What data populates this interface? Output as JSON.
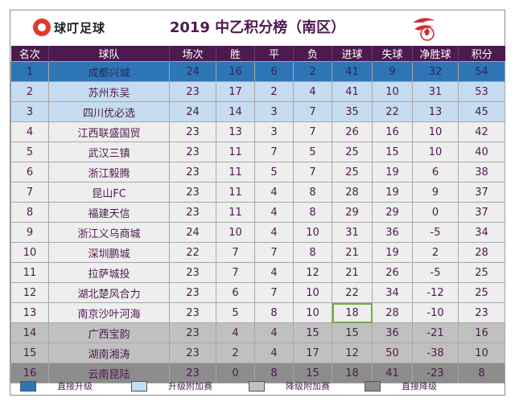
{
  "header": {
    "logo_text": "球叮足球",
    "title": "2019 中乙积分榜（南区）",
    "left_logo_icon": "football-app-logo-icon",
    "right_logo_icon": "league-emblem-icon"
  },
  "table": {
    "columns": [
      "名次",
      "球队",
      "场次",
      "胜",
      "平",
      "负",
      "进球",
      "失球",
      "净胜球",
      "积分"
    ],
    "rows": [
      {
        "rank": "1",
        "team": "成都兴城",
        "played": "24",
        "won": "16",
        "drawn": "6",
        "lost": "2",
        "gf": "41",
        "ga": "9",
        "gd": "32",
        "pts": "54",
        "zone": "direct"
      },
      {
        "rank": "2",
        "team": "苏州东吴",
        "played": "23",
        "won": "17",
        "drawn": "2",
        "lost": "4",
        "gf": "41",
        "ga": "10",
        "gd": "31",
        "pts": "53",
        "zone": "playoff"
      },
      {
        "rank": "3",
        "team": "四川优必选",
        "played": "24",
        "won": "14",
        "drawn": "3",
        "lost": "7",
        "gf": "35",
        "ga": "22",
        "gd": "13",
        "pts": "45",
        "zone": "playoff"
      },
      {
        "rank": "4",
        "team": "江西联盛国贸",
        "played": "23",
        "won": "13",
        "drawn": "3",
        "lost": "7",
        "gf": "26",
        "ga": "16",
        "gd": "10",
        "pts": "42",
        "zone": "normal"
      },
      {
        "rank": "5",
        "team": "武汉三镇",
        "played": "23",
        "won": "11",
        "drawn": "7",
        "lost": "5",
        "gf": "25",
        "ga": "15",
        "gd": "10",
        "pts": "40",
        "zone": "normal"
      },
      {
        "rank": "6",
        "team": "浙江毅腾",
        "played": "23",
        "won": "11",
        "drawn": "5",
        "lost": "7",
        "gf": "25",
        "ga": "19",
        "gd": "6",
        "pts": "38",
        "zone": "normal"
      },
      {
        "rank": "7",
        "team": "昆山FC",
        "played": "23",
        "won": "11",
        "drawn": "4",
        "lost": "8",
        "gf": "28",
        "ga": "19",
        "gd": "9",
        "pts": "37",
        "zone": "normal"
      },
      {
        "rank": "8",
        "team": "福建天信",
        "played": "23",
        "won": "11",
        "drawn": "4",
        "lost": "8",
        "gf": "29",
        "ga": "29",
        "gd": "0",
        "pts": "37",
        "zone": "normal"
      },
      {
        "rank": "9",
        "team": "浙江义乌商城",
        "played": "24",
        "won": "10",
        "drawn": "4",
        "lost": "10",
        "gf": "31",
        "ga": "36",
        "gd": "-5",
        "pts": "34",
        "zone": "normal"
      },
      {
        "rank": "10",
        "team": "深圳鹏城",
        "played": "22",
        "won": "7",
        "drawn": "7",
        "lost": "8",
        "gf": "21",
        "ga": "19",
        "gd": "2",
        "pts": "28",
        "zone": "normal"
      },
      {
        "rank": "11",
        "team": "拉萨城投",
        "played": "23",
        "won": "7",
        "drawn": "4",
        "lost": "12",
        "gf": "21",
        "ga": "26",
        "gd": "-5",
        "pts": "25",
        "zone": "normal"
      },
      {
        "rank": "12",
        "team": "湖北楚风合力",
        "played": "23",
        "won": "6",
        "drawn": "7",
        "lost": "10",
        "gf": "22",
        "ga": "34",
        "gd": "-12",
        "pts": "25",
        "zone": "normal"
      },
      {
        "rank": "13",
        "team": "南京沙叶河海",
        "played": "23",
        "won": "5",
        "drawn": "8",
        "lost": "10",
        "gf": "18",
        "ga": "28",
        "gd": "-10",
        "pts": "23",
        "zone": "normal"
      },
      {
        "rank": "14",
        "team": "广西宝韵",
        "played": "23",
        "won": "4",
        "drawn": "4",
        "lost": "15",
        "gf": "15",
        "ga": "36",
        "gd": "-21",
        "pts": "16",
        "zone": "rel-playoff"
      },
      {
        "rank": "15",
        "team": "湖南湘涛",
        "played": "23",
        "won": "2",
        "drawn": "4",
        "lost": "17",
        "gf": "12",
        "ga": "50",
        "gd": "-38",
        "pts": "10",
        "zone": "rel-playoff"
      },
      {
        "rank": "16",
        "team": "云南昆陆",
        "played": "23",
        "won": "0",
        "drawn": "8",
        "lost": "15",
        "gf": "18",
        "ga": "41",
        "gd": "-23",
        "pts": "8",
        "zone": "direct-rel"
      }
    ]
  },
  "legend": [
    {
      "label": "直接升级",
      "color": "#2e75b6"
    },
    {
      "label": "升级附加赛",
      "color": "#c6dcf0"
    },
    {
      "label": "降级附加赛",
      "color": "#c0c0c0"
    },
    {
      "label": "直接降级",
      "color": "#8c8c8c"
    }
  ],
  "colors": {
    "header_bg": "#4d1a4f",
    "title_text": "#4d1a4f",
    "highlight_border": "#70ad47"
  }
}
